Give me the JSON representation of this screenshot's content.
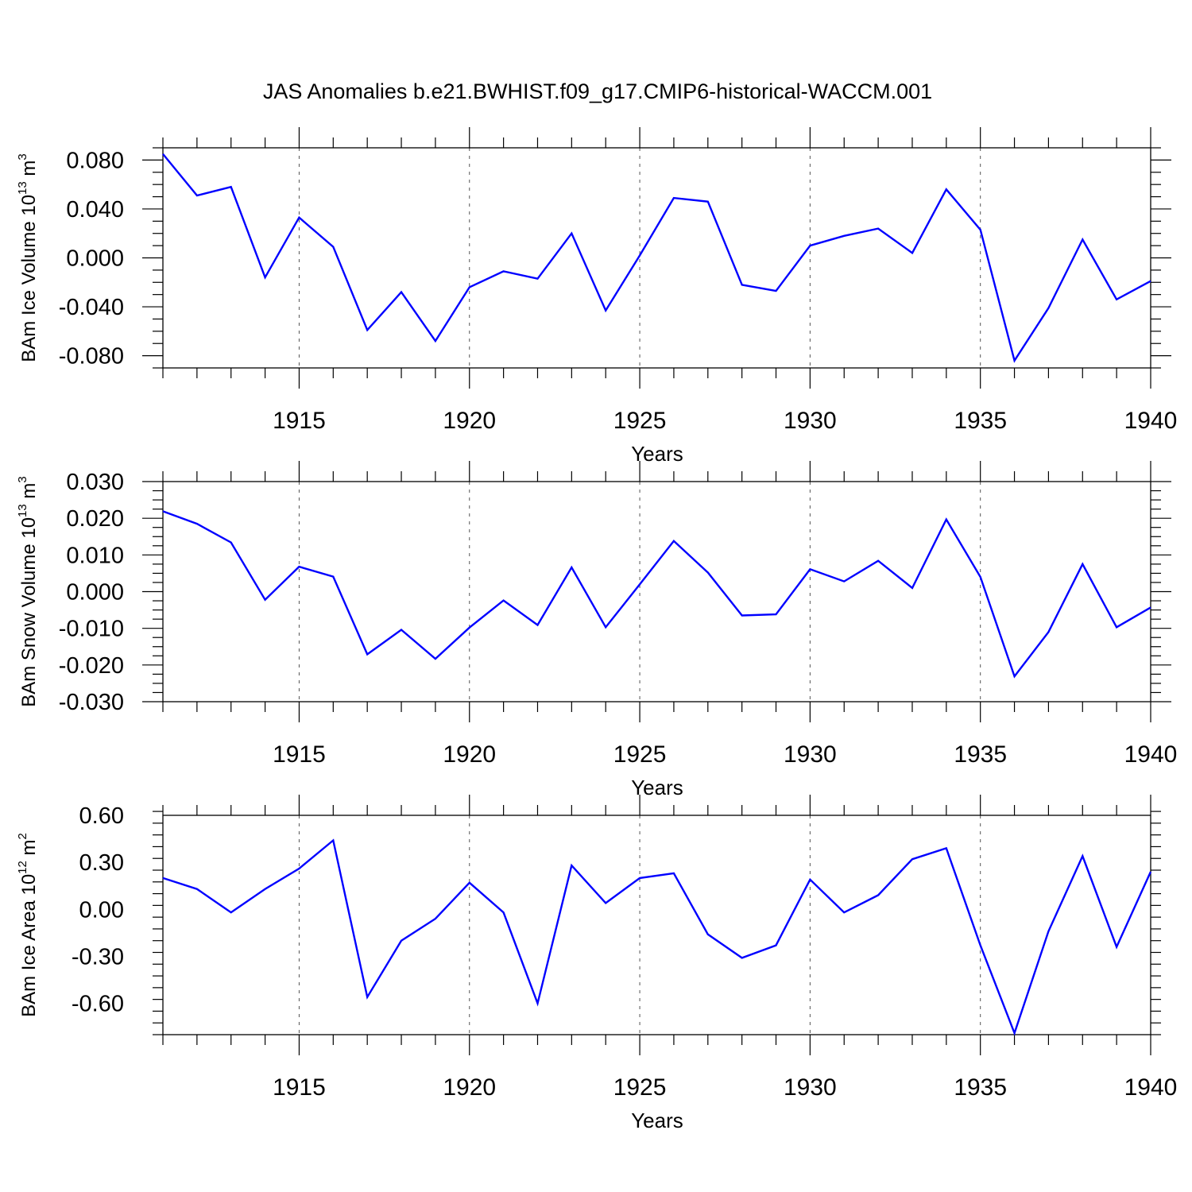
{
  "title": "JAS Anomalies b.e21.BWHIST.f09_g17.CMIP6-historical-WACCM.001",
  "colors": {
    "line": "#0000ff",
    "axis": "#000000",
    "grid": "#555555"
  },
  "chart_data": [
    {
      "type": "line",
      "xlabel": "Years",
      "ylabel": {
        "text": "BAm Ice Volume 10",
        "exp1": "13",
        "mid": " m",
        "exp2": "3"
      },
      "xlim": [
        1911,
        1940
      ],
      "ylim": [
        -0.09,
        0.09
      ],
      "xticks": [
        1915,
        1920,
        1925,
        1930,
        1935,
        1940
      ],
      "yticks": [
        -0.08,
        -0.04,
        0.0,
        0.04,
        0.08
      ],
      "yticklabels": [
        "-0.080",
        "-0.040",
        "0.000",
        "0.040",
        "0.080"
      ],
      "grid": "x dashed",
      "x": [
        1911,
        1912,
        1913,
        1914,
        1915,
        1916,
        1917,
        1918,
        1919,
        1920,
        1921,
        1922,
        1923,
        1924,
        1925,
        1926,
        1927,
        1928,
        1929,
        1930,
        1931,
        1932,
        1933,
        1934,
        1935,
        1936,
        1937,
        1938,
        1939,
        1940
      ],
      "values": [
        0.085,
        0.051,
        0.058,
        -0.016,
        0.033,
        0.009,
        -0.059,
        -0.028,
        -0.068,
        -0.024,
        -0.011,
        -0.017,
        0.02,
        -0.043,
        0.002,
        0.049,
        0.046,
        -0.022,
        -0.027,
        0.01,
        0.018,
        0.024,
        0.004,
        0.056,
        0.023,
        -0.084,
        -0.041,
        0.015,
        -0.034,
        -0.019
      ]
    },
    {
      "type": "line",
      "xlabel": "Years",
      "ylabel": {
        "text": "BAm Snow Volume 10",
        "exp1": "13",
        "mid": " m",
        "exp2": "3"
      },
      "xlim": [
        1911,
        1940
      ],
      "ylim": [
        -0.03,
        0.03
      ],
      "xticks": [
        1915,
        1920,
        1925,
        1930,
        1935,
        1940
      ],
      "yticks": [
        -0.03,
        -0.02,
        -0.01,
        0.0,
        0.01,
        0.02,
        0.03
      ],
      "yticklabels": [
        "-0.030",
        "-0.020",
        "-0.010",
        "0.000",
        "0.010",
        "0.020",
        "0.030"
      ],
      "grid": "x dashed",
      "x": [
        1911,
        1912,
        1913,
        1914,
        1915,
        1916,
        1917,
        1918,
        1919,
        1920,
        1921,
        1922,
        1923,
        1924,
        1925,
        1926,
        1927,
        1928,
        1929,
        1930,
        1931,
        1932,
        1933,
        1934,
        1935,
        1936,
        1937,
        1938,
        1939,
        1940
      ],
      "values": [
        0.0219,
        0.0185,
        0.0134,
        -0.0022,
        0.0068,
        0.0041,
        -0.0171,
        -0.0104,
        -0.0183,
        -0.0098,
        -0.0024,
        -0.0091,
        0.0066,
        -0.0097,
        0.002,
        0.0138,
        0.0052,
        -0.0065,
        -0.0062,
        0.0061,
        0.0028,
        0.0084,
        0.001,
        0.0197,
        0.004,
        -0.0231,
        -0.011,
        0.0075,
        -0.0097,
        -0.0043
      ]
    },
    {
      "type": "line",
      "xlabel": "Years",
      "ylabel": {
        "text": "BAm Ice Area 10",
        "exp1": "12",
        "mid": " m",
        "exp2": "2"
      },
      "xlim": [
        1911,
        1940
      ],
      "ylim": [
        -0.8,
        0.6
      ],
      "xticks": [
        1915,
        1920,
        1925,
        1930,
        1935,
        1940
      ],
      "yticks": [
        -0.6,
        -0.3,
        0.0,
        0.3,
        0.6
      ],
      "yticklabels": [
        "-0.60",
        "-0.30",
        "0.00",
        "0.30",
        "0.60"
      ],
      "grid": "x dashed",
      "x": [
        1911,
        1912,
        1913,
        1914,
        1915,
        1916,
        1917,
        1918,
        1919,
        1920,
        1921,
        1922,
        1923,
        1924,
        1925,
        1926,
        1927,
        1928,
        1929,
        1930,
        1931,
        1932,
        1933,
        1934,
        1935,
        1936,
        1937,
        1938,
        1939,
        1940
      ],
      "values": [
        0.2,
        0.13,
        -0.02,
        0.13,
        0.26,
        0.44,
        -0.56,
        -0.2,
        -0.06,
        0.17,
        -0.02,
        -0.6,
        0.28,
        0.04,
        0.2,
        0.23,
        -0.16,
        -0.31,
        -0.23,
        0.19,
        -0.02,
        0.09,
        0.32,
        0.39,
        -0.23,
        -0.79,
        -0.14,
        0.34,
        -0.24,
        0.24
      ]
    }
  ]
}
